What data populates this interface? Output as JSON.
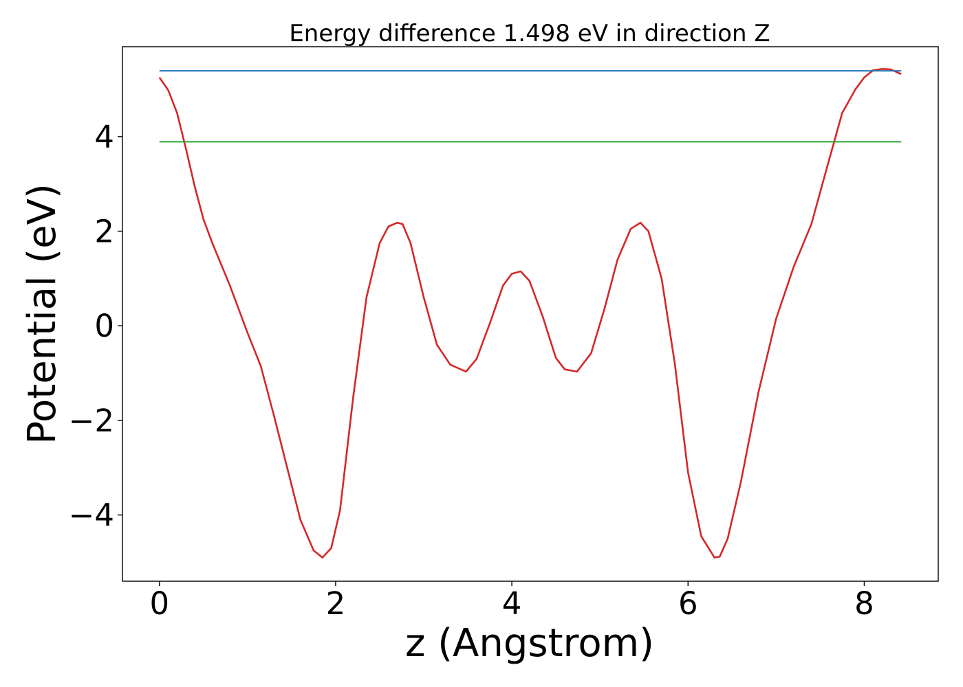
{
  "chart_data": {
    "type": "line",
    "title": "Energy difference 1.498 eV in direction Z",
    "xlabel": "z (Angstrom)",
    "ylabel": "Potential (eV)",
    "xlim": [
      -0.42,
      8.84
    ],
    "ylim": [
      -5.4,
      5.9
    ],
    "xticks": [
      0,
      2,
      4,
      6,
      8
    ],
    "xtick_labels": [
      "0",
      "2",
      "4",
      "6",
      "8"
    ],
    "yticks": [
      -4,
      -2,
      0,
      2,
      4
    ],
    "ytick_labels": [
      "−4",
      "−2",
      "0",
      "2",
      "4"
    ],
    "grid": false,
    "series": [
      {
        "color": "#d62728",
        "kind": "curve",
        "x": [
          0.0,
          0.1,
          0.2,
          0.3,
          0.4,
          0.5,
          0.6,
          0.8,
          1.0,
          1.15,
          1.3,
          1.45,
          1.6,
          1.75,
          1.85,
          1.95,
          2.05,
          2.2,
          2.35,
          2.5,
          2.6,
          2.7,
          2.76,
          2.85,
          3.0,
          3.15,
          3.3,
          3.48,
          3.6,
          3.75,
          3.9,
          4.0,
          4.1,
          4.2,
          4.35,
          4.5,
          4.6,
          4.74,
          4.9,
          5.05,
          5.2,
          5.35,
          5.46,
          5.55,
          5.7,
          5.85,
          6.0,
          6.15,
          6.3,
          6.36,
          6.45,
          6.6,
          6.8,
          7.0,
          7.2,
          7.4,
          7.6,
          7.75,
          7.9,
          8.0,
          8.1,
          8.2,
          8.3,
          8.35,
          8.42
        ],
        "y": [
          5.25,
          4.98,
          4.5,
          3.75,
          2.95,
          2.25,
          1.75,
          0.85,
          -0.15,
          -0.85,
          -1.9,
          -3.0,
          -4.1,
          -4.75,
          -4.9,
          -4.7,
          -3.9,
          -1.5,
          0.6,
          1.75,
          2.1,
          2.18,
          2.15,
          1.75,
          0.6,
          -0.4,
          -0.82,
          -0.97,
          -0.7,
          0.05,
          0.85,
          1.1,
          1.15,
          0.95,
          0.2,
          -0.68,
          -0.92,
          -0.97,
          -0.58,
          0.35,
          1.4,
          2.05,
          2.18,
          2.0,
          1.0,
          -0.8,
          -3.1,
          -4.45,
          -4.9,
          -4.88,
          -4.5,
          -3.3,
          -1.4,
          0.15,
          1.25,
          2.15,
          3.5,
          4.5,
          5.0,
          5.25,
          5.4,
          5.43,
          5.42,
          5.38,
          5.32
        ]
      },
      {
        "color": "#1f77b4",
        "kind": "horizontal",
        "x": [
          0,
          8.42
        ],
        "y": [
          5.39,
          5.39
        ]
      },
      {
        "color": "#2ca02c",
        "kind": "horizontal",
        "x": [
          0,
          8.42
        ],
        "y": [
          3.89,
          3.89
        ]
      }
    ]
  }
}
